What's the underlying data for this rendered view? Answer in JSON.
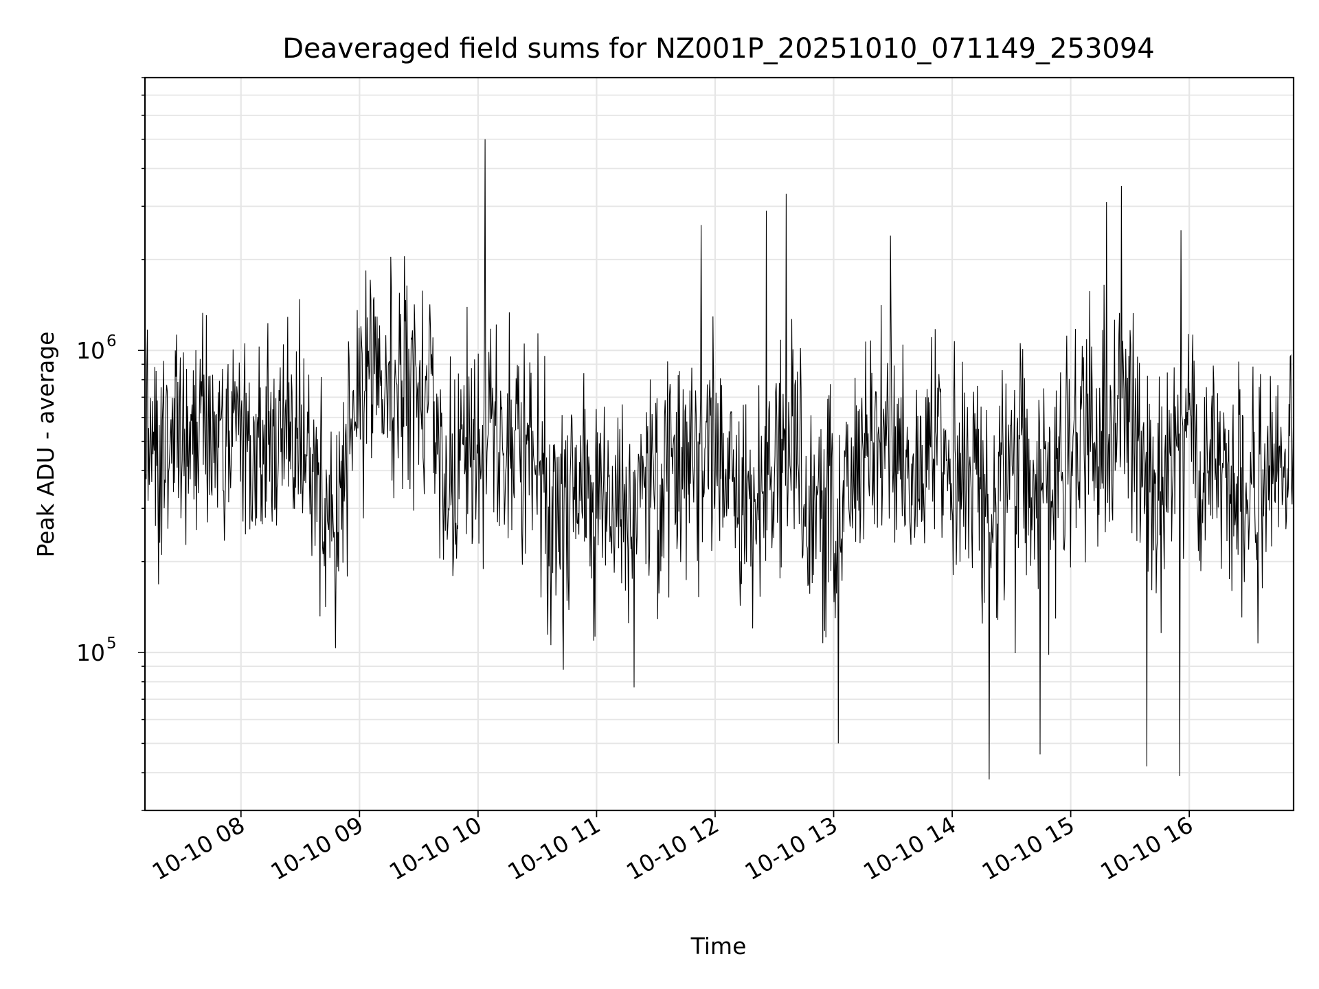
{
  "chart_data": {
    "type": "line",
    "title": "Deaveraged field sums for NZ001P_20251010_071149_253094",
    "xlabel": "Time",
    "ylabel": "Peak ADU - average",
    "yscale": "log",
    "ylim": [
      30000,
      8000000
    ],
    "xlim_hours": [
      7.19,
      16.88
    ],
    "grid": true,
    "line_color": "#000000",
    "x_ticks": [
      {
        "hour": 8,
        "label": "10-10 08"
      },
      {
        "hour": 9,
        "label": "10-10 09"
      },
      {
        "hour": 10,
        "label": "10-10 10"
      },
      {
        "hour": 11,
        "label": "10-10 11"
      },
      {
        "hour": 12,
        "label": "10-10 12"
      },
      {
        "hour": 13,
        "label": "10-10 13"
      },
      {
        "hour": 14,
        "label": "10-10 14"
      },
      {
        "hour": 15,
        "label": "10-10 15"
      },
      {
        "hour": 16,
        "label": "10-10 16"
      }
    ],
    "y_ticks": [
      {
        "value": 100000,
        "base": "10",
        "exp": "5"
      },
      {
        "value": 1000000,
        "base": "10",
        "exp": "6"
      }
    ],
    "series": [
      {
        "name": "Deaveraged field sums",
        "time_hours": [
          7.2,
          7.3,
          7.4,
          7.5,
          7.6,
          7.7,
          7.8,
          7.9,
          8.0,
          8.1,
          8.2,
          8.3,
          8.4,
          8.5,
          8.6,
          8.7,
          8.8,
          8.9,
          9.0,
          9.1,
          9.2,
          9.3,
          9.4,
          9.5,
          9.6,
          9.7,
          9.8,
          9.9,
          10.0,
          10.1,
          10.2,
          10.3,
          10.4,
          10.5,
          10.6,
          10.7,
          10.8,
          10.9,
          11.0,
          11.1,
          11.2,
          11.3,
          11.4,
          11.5,
          11.6,
          11.7,
          11.8,
          11.9,
          12.0,
          12.1,
          12.2,
          12.3,
          12.4,
          12.5,
          12.6,
          12.7,
          12.8,
          12.9,
          13.0,
          13.1,
          13.2,
          13.3,
          13.4,
          13.5,
          13.6,
          13.7,
          13.8,
          13.9,
          14.0,
          14.1,
          14.2,
          14.3,
          14.4,
          14.5,
          14.6,
          14.7,
          14.8,
          14.9,
          15.0,
          15.1,
          15.2,
          15.3,
          15.4,
          15.5,
          15.6,
          15.7,
          15.8,
          15.9,
          16.0,
          16.1,
          16.2,
          16.3,
          16.4,
          16.5,
          16.6,
          16.7,
          16.8
        ],
        "peak_adu": [
          600000,
          450000,
          650000,
          500000,
          550000,
          600000,
          520000,
          480000,
          580000,
          500000,
          560000,
          470000,
          610000,
          400000,
          520000,
          250000,
          300000,
          450000,
          700000,
          750000,
          800000,
          850000,
          900000,
          820000,
          780000,
          350000,
          300000,
          420000,
          500000,
          480000,
          520000,
          460000,
          500000,
          380000,
          300000,
          320000,
          330000,
          340000,
          300000,
          280000,
          310000,
          290000,
          340000,
          380000,
          420000,
          460000,
          400000,
          420000,
          470000,
          380000,
          320000,
          340000,
          360000,
          500000,
          560000,
          420000,
          320000,
          280000,
          260000,
          380000,
          480000,
          460000,
          520000,
          500000,
          430000,
          400000,
          450000,
          480000,
          420000,
          450000,
          400000,
          250000,
          380000,
          420000,
          450000,
          260000,
          350000,
          420000,
          480000,
          520000,
          450000,
          480000,
          600000,
          550000,
          420000,
          350000,
          380000,
          450000,
          550000,
          420000,
          380000,
          400000,
          350000,
          330000,
          380000,
          420000,
          450000
        ],
        "notable_peaks": [
          {
            "hour": 10.06,
            "value": 5000000
          },
          {
            "hour": 12.6,
            "value": 3300000
          },
          {
            "hour": 12.43,
            "value": 2900000
          },
          {
            "hour": 15.43,
            "value": 3500000
          },
          {
            "hour": 15.3,
            "value": 3100000
          },
          {
            "hour": 13.48,
            "value": 2400000
          },
          {
            "hour": 11.88,
            "value": 2600000
          },
          {
            "hour": 15.93,
            "value": 2500000
          }
        ],
        "notable_dips": [
          {
            "hour": 14.31,
            "value": 38000
          },
          {
            "hour": 15.64,
            "value": 42000
          },
          {
            "hour": 15.92,
            "value": 39000
          },
          {
            "hour": 14.74,
            "value": 46000
          },
          {
            "hour": 13.04,
            "value": 50000
          }
        ]
      }
    ]
  }
}
